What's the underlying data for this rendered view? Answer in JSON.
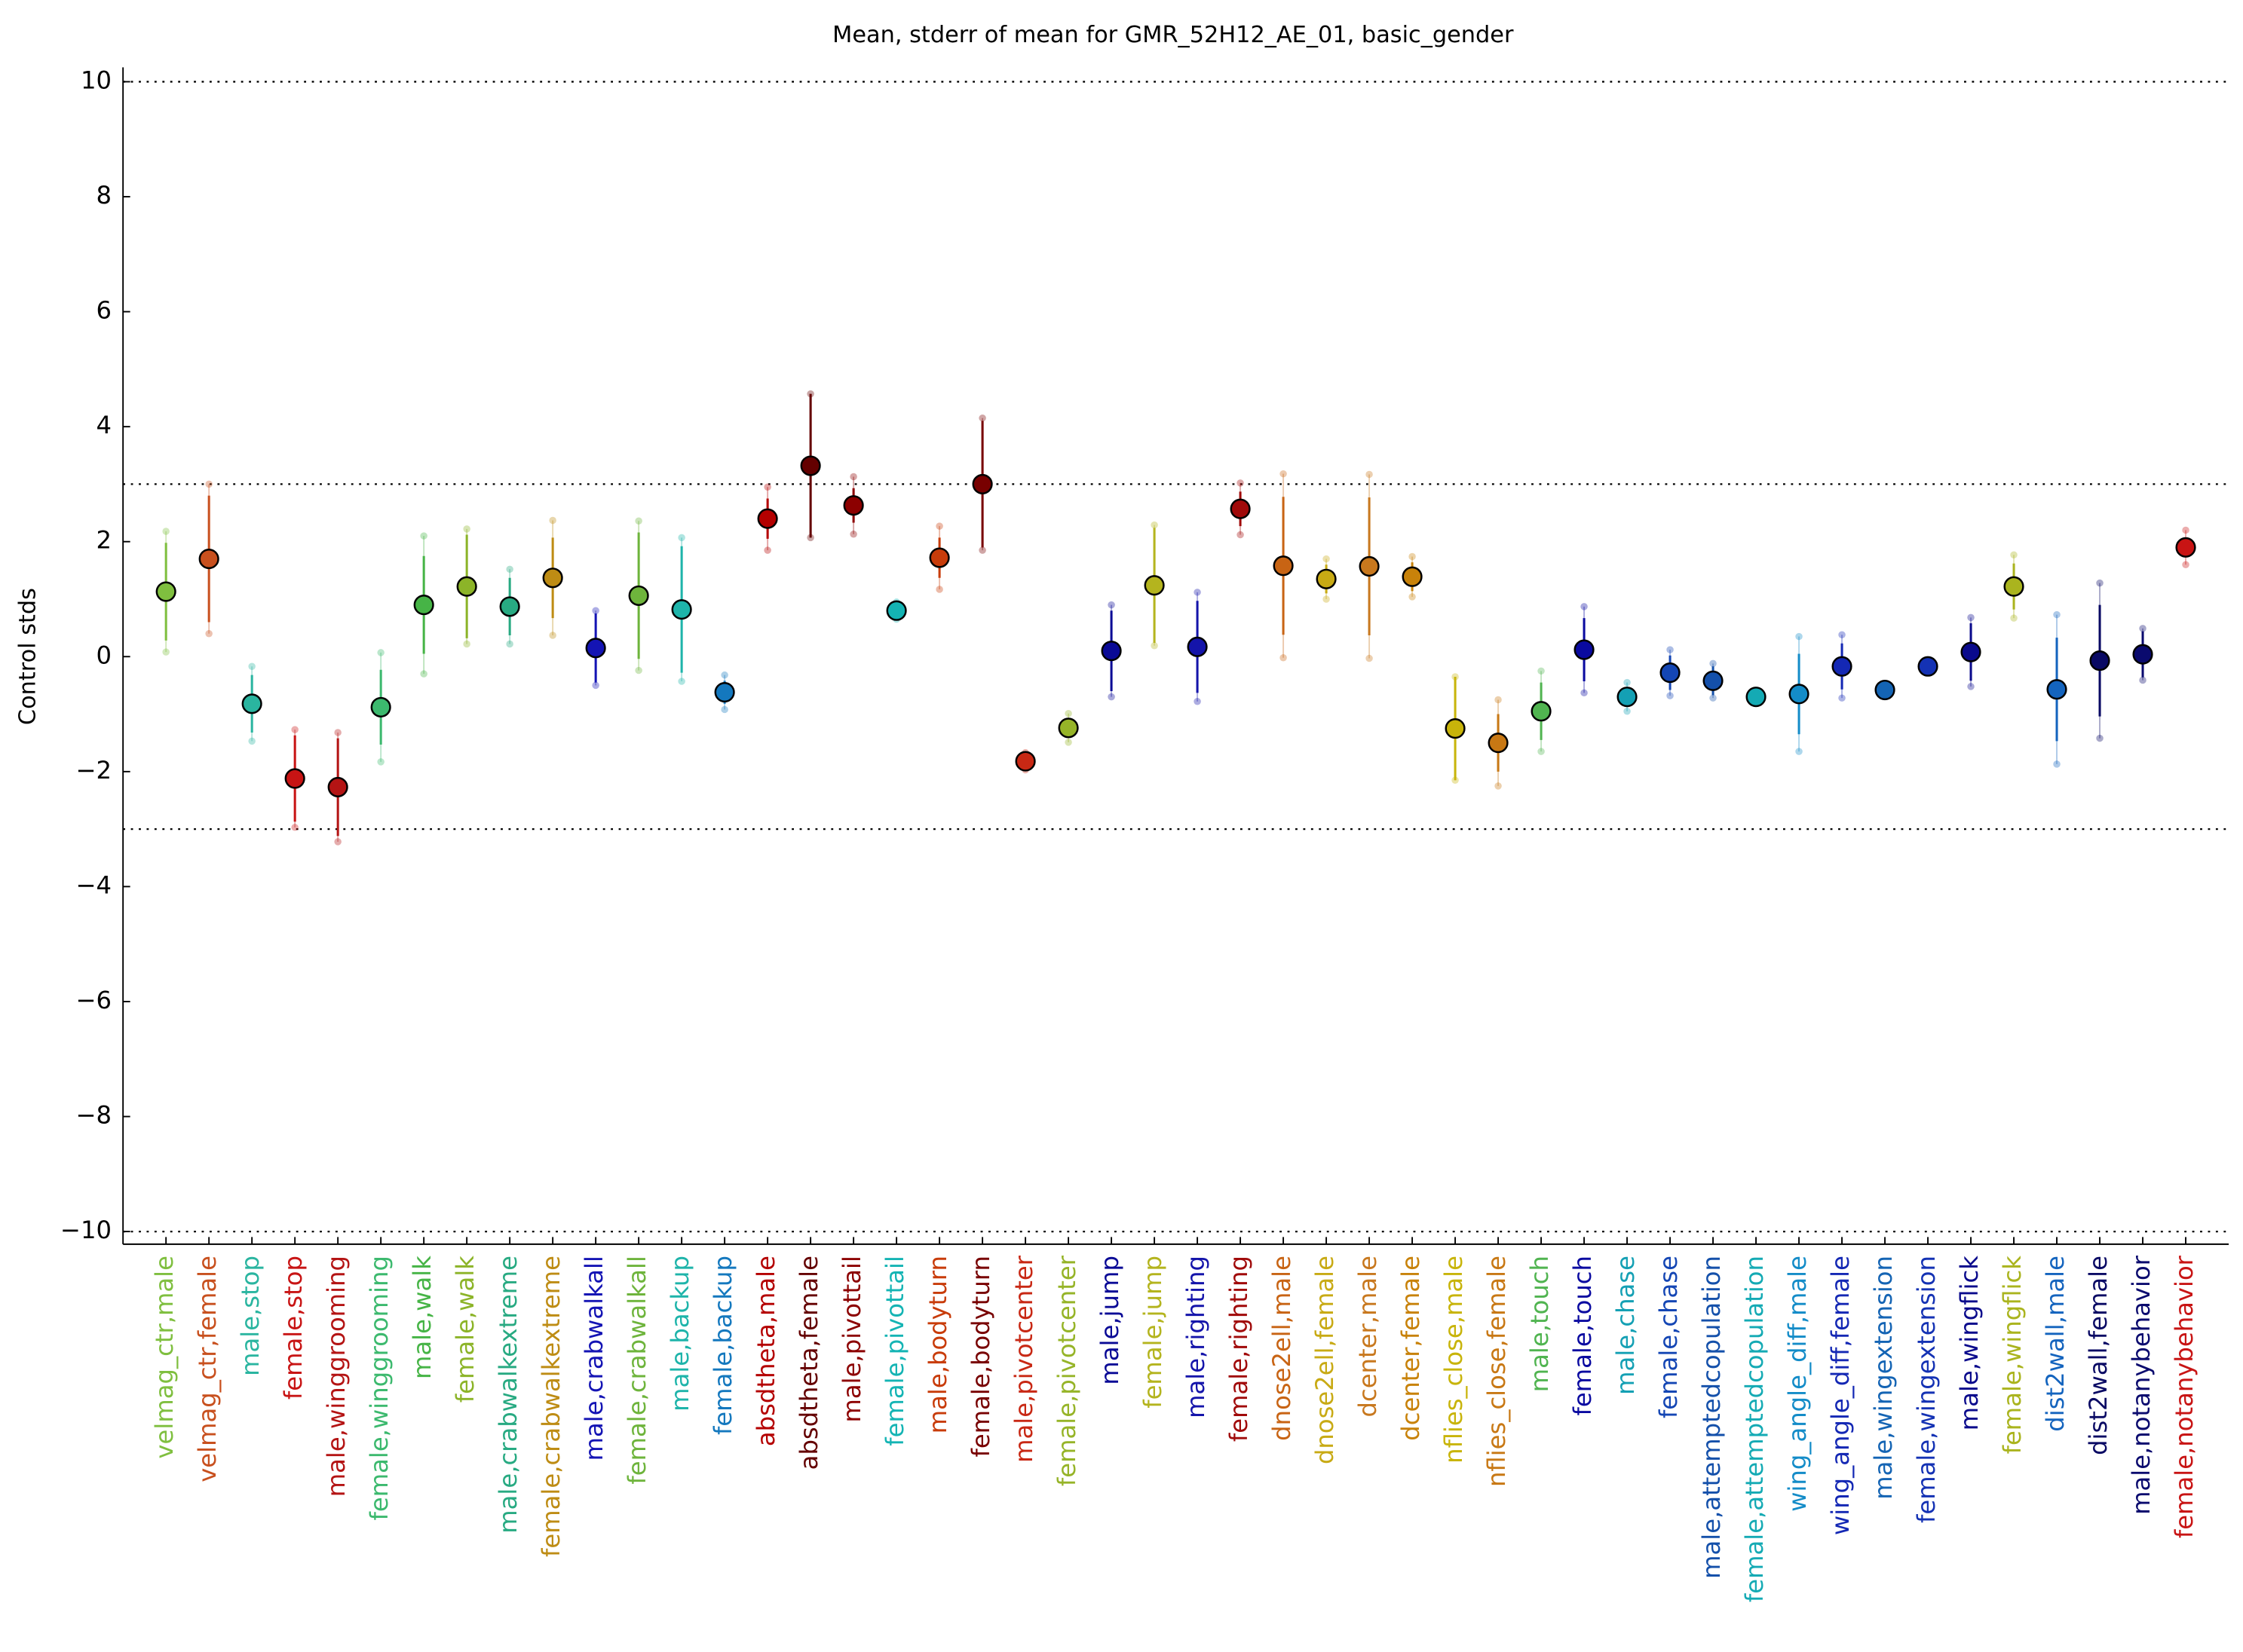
{
  "chart_data": {
    "type": "errorbar",
    "title": "Mean, stderr of mean for GMR_52H12_AE_01, basic_gender",
    "ylabel": "Control stds",
    "categories": [
      "velmag_ctr,male",
      "velmag_ctr,female",
      "male,stop",
      "female,stop",
      "male,winggrooming",
      "female,winggrooming",
      "male,walk",
      "female,walk",
      "male,crabwalkextreme",
      "female,crabwalkextreme",
      "male,crabwalkall",
      "female,crabwalkall",
      "male,backup",
      "female,backup",
      "absdtheta,male",
      "absdtheta,female",
      "male,pivottail",
      "female,pivottail",
      "male,bodyturn",
      "female,bodyturn",
      "male,pivotcenter",
      "female,pivotcenter",
      "male,jump",
      "female,jump",
      "male,righting",
      "female,righting",
      "dnose2ell,male",
      "dnose2ell,female",
      "dcenter,male",
      "dcenter,female",
      "nflies_close,male",
      "nflies_close,female",
      "male,touch",
      "female,touch",
      "male,chase",
      "female,chase",
      "male,attemptedcopulation",
      "female,attemptedcopulation",
      "wing_angle_diff,male",
      "wing_angle_diff,female",
      "male,wingextension",
      "female,wingextension",
      "male,wingflick",
      "female,wingflick",
      "dist2wall,male",
      "dist2wall,female",
      "male,notanybehavior",
      "female,notanybehavior"
    ],
    "values": [
      1.13,
      1.7,
      -0.82,
      -2.12,
      -2.27,
      -0.88,
      0.9,
      1.22,
      0.87,
      1.37,
      0.15,
      1.06,
      0.82,
      -0.62,
      2.4,
      3.32,
      2.63,
      0.8,
      1.72,
      3.0,
      -1.82,
      -1.24,
      0.1,
      1.24,
      0.17,
      2.57,
      1.58,
      1.35,
      1.57,
      1.39,
      -1.25,
      -1.5,
      -0.95,
      0.12,
      -0.7,
      -0.28,
      -0.42,
      -0.7,
      -0.65,
      -0.17,
      -0.58,
      -0.17,
      0.08,
      1.22,
      -0.57,
      -0.07,
      0.04,
      1.9
    ],
    "errors": [
      0.85,
      1.1,
      0.5,
      0.75,
      0.85,
      0.65,
      0.85,
      0.9,
      0.5,
      0.7,
      0.6,
      1.1,
      1.1,
      0.2,
      0.35,
      1.25,
      0.3,
      0.1,
      0.35,
      1.1,
      0.1,
      0.1,
      0.7,
      1.0,
      0.8,
      0.3,
      1.2,
      0.25,
      1.2,
      0.25,
      0.9,
      0.5,
      0.5,
      0.55,
      0.15,
      0.3,
      0.25,
      0.05,
      0.7,
      0.4,
      0.05,
      0.05,
      0.5,
      0.4,
      0.9,
      0.97,
      0.4,
      0.15
    ],
    "spread": [
      1.05,
      1.3,
      0.65,
      0.85,
      0.95,
      0.95,
      1.2,
      1.0,
      0.65,
      1.0,
      0.65,
      1.3,
      1.25,
      0.3,
      0.55,
      1.25,
      0.5,
      0.15,
      0.55,
      1.15,
      0.15,
      0.25,
      0.8,
      1.05,
      0.95,
      0.45,
      1.6,
      0.35,
      1.6,
      0.35,
      0.9,
      0.75,
      0.7,
      0.75,
      0.25,
      0.4,
      0.3,
      0.05,
      1.0,
      0.55,
      0.05,
      0.05,
      0.6,
      0.55,
      1.3,
      1.35,
      0.45,
      0.3
    ],
    "colors": [
      "#7fbf3f",
      "#c8501e",
      "#2ab5a0",
      "#c81414",
      "#b41414",
      "#3cb96e",
      "#46b446",
      "#8cb428",
      "#28aa82",
      "#be8c14",
      "#1414b4",
      "#6eb43c",
      "#1eb4aa",
      "#1478be",
      "#b40000",
      "#640000",
      "#8c0000",
      "#14b4b4",
      "#c83c0a",
      "#780000",
      "#c82814",
      "#96b428",
      "#0a0a96",
      "#b4b41e",
      "#1414aa",
      "#a00a0a",
      "#c86414",
      "#c8aa14",
      "#c8781e",
      "#c8820a",
      "#c8b40a",
      "#c87814",
      "#50b450",
      "#0a0aa0",
      "#14a0b4",
      "#1446b4",
      "#1450aa",
      "#14aab4",
      "#148cc8",
      "#1428b4",
      "#1464b4",
      "#1432b4",
      "#0a0a8c",
      "#aab41e",
      "#1464be",
      "#0a0a64",
      "#0a0a6e",
      "#c81414"
    ],
    "xlim": [
      0,
      49
    ],
    "ylim": [
      -10.22,
      10.25
    ],
    "yticks": [
      {
        "value": -10,
        "label": "−10"
      },
      {
        "value": -8,
        "label": "−8"
      },
      {
        "value": -6,
        "label": "−6"
      },
      {
        "value": -4,
        "label": "−4"
      },
      {
        "value": -2,
        "label": "−2"
      },
      0,
      2,
      4,
      6,
      8,
      10
    ],
    "hlines": [
      -3,
      3,
      -10,
      10
    ]
  }
}
